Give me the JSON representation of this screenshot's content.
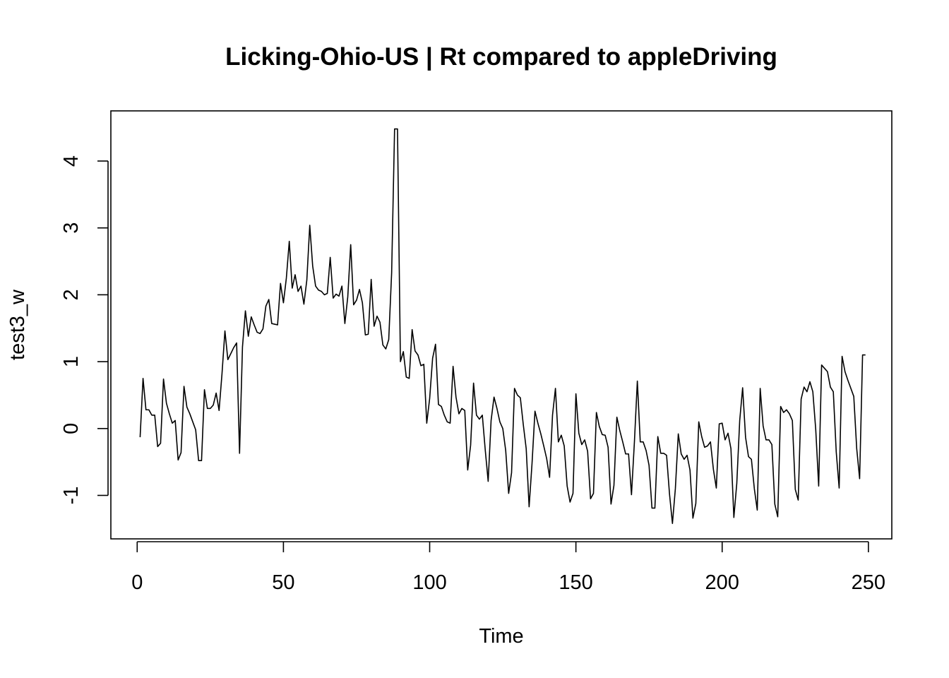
{
  "chart_data": {
    "type": "line",
    "title": "Licking-Ohio-US | Rt compared to appleDriving",
    "xlabel": "Time",
    "ylabel": "test3_w",
    "xlim": [
      -9,
      258
    ],
    "ylim": [
      -1.65,
      4.75
    ],
    "x_ticks": [
      0,
      50,
      100,
      150,
      200,
      250
    ],
    "y_ticks": [
      -1,
      0,
      1,
      2,
      3,
      4
    ],
    "grid": false,
    "legend": "none",
    "line_color": "#000000",
    "x_start": 1,
    "values": [
      -0.13,
      0.75,
      0.28,
      0.28,
      0.2,
      0.2,
      -0.27,
      -0.22,
      0.74,
      0.38,
      0.22,
      0.08,
      0.12,
      -0.47,
      -0.36,
      0.63,
      0.32,
      0.22,
      0.1,
      -0.02,
      -0.48,
      -0.48,
      0.58,
      0.3,
      0.3,
      0.35,
      0.53,
      0.27,
      0.82,
      1.46,
      1.03,
      1.12,
      1.21,
      1.28,
      -0.37,
      1.22,
      1.76,
      1.38,
      1.67,
      1.55,
      1.44,
      1.42,
      1.49,
      1.83,
      1.93,
      1.57,
      1.56,
      1.55,
      2.17,
      1.88,
      2.25,
      2.8,
      2.1,
      2.3,
      2.05,
      2.13,
      1.86,
      2.22,
      3.04,
      2.43,
      2.13,
      2.07,
      2.05,
      2.0,
      2.02,
      2.56,
      1.95,
      2.01,
      1.98,
      2.13,
      1.57,
      1.97,
      2.75,
      1.85,
      1.92,
      2.08,
      1.88,
      1.4,
      1.41,
      2.23,
      1.53,
      1.68,
      1.59,
      1.25,
      1.19,
      1.33,
      2.33,
      4.48,
      4.48,
      1.0,
      1.15,
      0.77,
      0.75,
      1.48,
      1.16,
      1.1,
      0.94,
      0.96,
      0.08,
      0.45,
      1.05,
      1.26,
      0.36,
      0.33,
      0.2,
      0.1,
      0.08,
      0.93,
      0.47,
      0.22,
      0.3,
      0.27,
      -0.62,
      -0.25,
      0.68,
      0.2,
      0.14,
      0.2,
      -0.32,
      -0.79,
      0.12,
      0.47,
      0.3,
      0.1,
      0.0,
      -0.33,
      -0.97,
      -0.66,
      0.6,
      0.5,
      0.46,
      0.06,
      -0.3,
      -1.17,
      -0.52,
      0.26,
      0.08,
      -0.08,
      -0.26,
      -0.45,
      -0.73,
      0.2,
      0.6,
      -0.2,
      -0.1,
      -0.26,
      -0.86,
      -1.1,
      -0.97,
      0.52,
      -0.07,
      -0.24,
      -0.17,
      -0.34,
      -1.05,
      -0.97,
      0.24,
      0.03,
      -0.09,
      -0.1,
      -0.28,
      -1.13,
      -0.85,
      0.17,
      -0.03,
      -0.2,
      -0.38,
      -0.38,
      -0.99,
      -0.2,
      0.71,
      -0.2,
      -0.2,
      -0.33,
      -0.55,
      -1.19,
      -1.19,
      -0.12,
      -0.37,
      -0.37,
      -0.4,
      -0.98,
      -1.42,
      -0.9,
      -0.08,
      -0.38,
      -0.46,
      -0.4,
      -0.62,
      -1.34,
      -1.12,
      0.1,
      -0.12,
      -0.28,
      -0.26,
      -0.2,
      -0.61,
      -0.89,
      0.07,
      0.08,
      -0.17,
      -0.07,
      -0.3,
      -1.33,
      -0.82,
      0.12,
      0.61,
      -0.13,
      -0.42,
      -0.46,
      -0.9,
      -1.22,
      0.6,
      0.04,
      -0.17,
      -0.17,
      -0.24,
      -1.13,
      -1.32,
      0.33,
      0.24,
      0.28,
      0.22,
      0.12,
      -0.91,
      -1.07,
      0.44,
      0.62,
      0.55,
      0.7,
      0.55,
      -0.02,
      -0.86,
      0.95,
      0.9,
      0.85,
      0.62,
      0.55,
      -0.35,
      -0.89,
      1.08,
      0.85,
      0.72,
      0.6,
      0.48,
      -0.3,
      -0.75,
      1.1,
      1.1
    ]
  }
}
